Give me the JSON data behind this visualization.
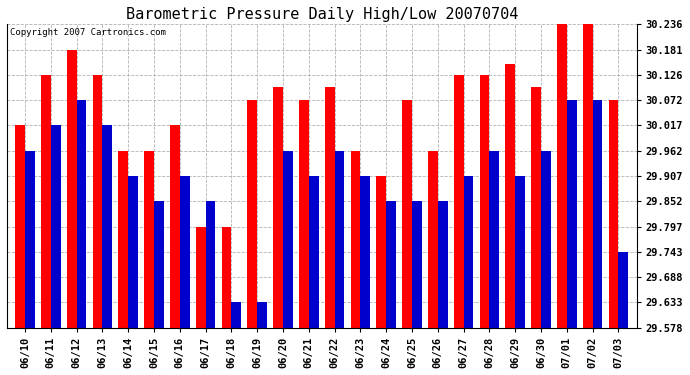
{
  "title": "Barometric Pressure Daily High/Low 20070704",
  "copyright": "Copyright 2007 Cartronics.com",
  "dates": [
    "06/10",
    "06/11",
    "06/12",
    "06/13",
    "06/14",
    "06/15",
    "06/16",
    "06/17",
    "06/18",
    "06/19",
    "06/20",
    "06/21",
    "06/22",
    "06/23",
    "06/24",
    "06/25",
    "06/26",
    "06/27",
    "06/28",
    "06/29",
    "06/30",
    "07/01",
    "07/02",
    "07/03"
  ],
  "highs": [
    30.017,
    30.126,
    30.181,
    30.126,
    29.962,
    29.962,
    30.017,
    29.797,
    29.797,
    30.072,
    30.1,
    30.072,
    30.1,
    29.962,
    29.907,
    30.072,
    29.962,
    30.126,
    30.126,
    30.15,
    30.1,
    30.236,
    30.236,
    30.072
  ],
  "lows": [
    29.962,
    30.017,
    30.072,
    30.017,
    29.907,
    29.852,
    29.907,
    29.852,
    29.633,
    29.633,
    29.962,
    29.907,
    29.962,
    29.907,
    29.852,
    29.852,
    29.852,
    29.907,
    29.962,
    29.907,
    29.962,
    30.072,
    30.072,
    29.743
  ],
  "high_color": "#ff0000",
  "low_color": "#0000cc",
  "bg_color": "#ffffff",
  "plot_bg_color": "#ffffff",
  "grid_color": "#aaaaaa",
  "ymin": 29.578,
  "ymax": 30.236,
  "yticks": [
    29.578,
    29.633,
    29.688,
    29.743,
    29.797,
    29.852,
    29.907,
    29.962,
    30.017,
    30.072,
    30.126,
    30.181,
    30.236
  ],
  "title_fontsize": 11,
  "tick_fontsize": 7.5,
  "copyright_fontsize": 6.5,
  "bar_width": 0.38,
  "figwidth": 6.9,
  "figheight": 3.75,
  "dpi": 100
}
